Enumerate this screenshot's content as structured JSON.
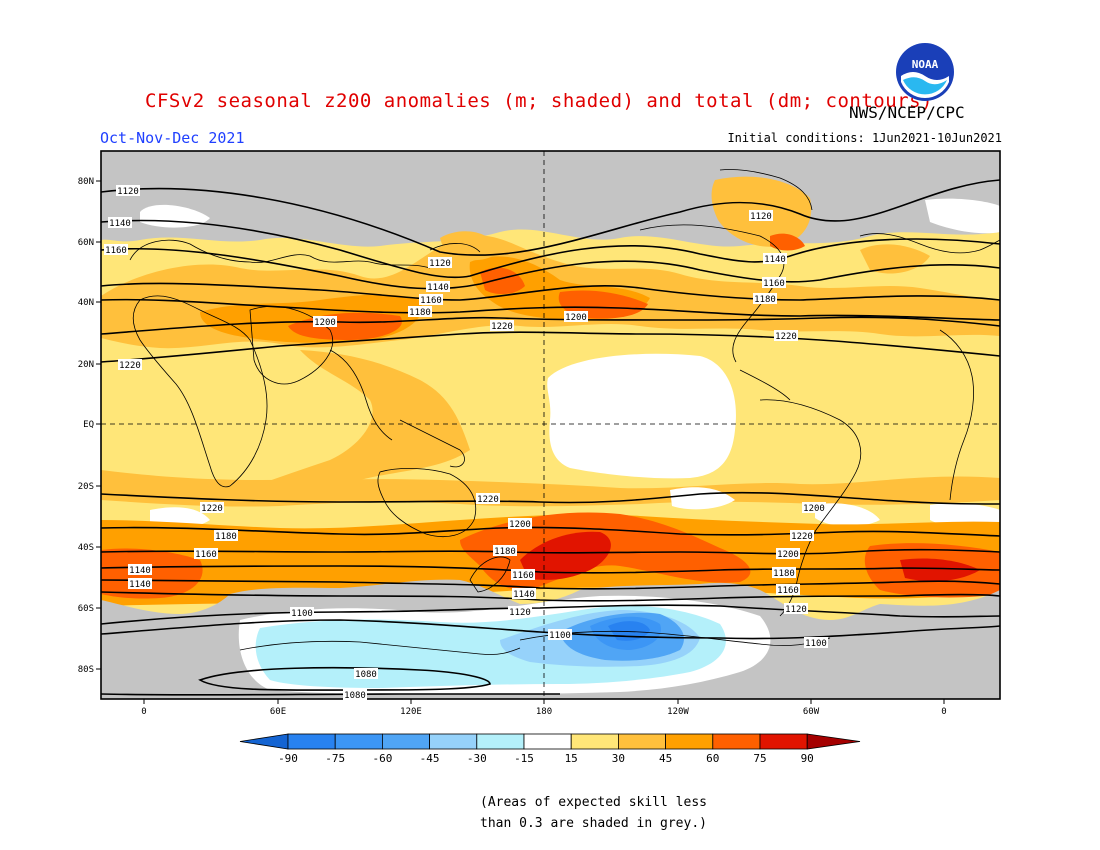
{
  "header": {
    "title": "CFSv2 seasonal z200 anomalies (m; shaded) and total (dm; contours)",
    "season": "Oct-Nov-Dec 2021",
    "initial_conditions": "Initial conditions: 1Jun2021-10Jun2021",
    "agency": "NWS/NCEP/CPC",
    "logo_text": "NOAA"
  },
  "map": {
    "lat_labels": [
      "80N",
      "60N",
      "40N",
      "20N",
      "EQ",
      "20S",
      "40S",
      "60S",
      "80S"
    ],
    "lon_labels": [
      "0",
      "60E",
      "120E",
      "180",
      "120W",
      "60W",
      "0"
    ],
    "contour_labels": [
      "1120",
      "1140",
      "1160",
      "1120",
      "1140",
      "1160",
      "1180",
      "1200",
      "1220",
      "1120",
      "1140",
      "1160",
      "1180",
      "1200",
      "1220",
      "1220",
      "1220",
      "1220",
      "1200",
      "1180",
      "1160",
      "1140",
      "1200",
      "1180",
      "1160",
      "1140",
      "1220",
      "1200",
      "1180",
      "1160",
      "1140",
      "1120",
      "1100",
      "1120",
      "1100",
      "1100",
      "1080",
      "1080"
    ]
  },
  "colorbar": {
    "ticks": [
      "-90",
      "-75",
      "-60",
      "-45",
      "-30",
      "-15",
      "15",
      "30",
      "45",
      "60",
      "75",
      "90"
    ],
    "colors": [
      "#1464d2",
      "#2882f0",
      "#3c96f5",
      "#50a5f5",
      "#96d2fa",
      "#b4f0fa",
      "#ffffff",
      "#ffe678",
      "#ffc03c",
      "#ffa000",
      "#ff6000",
      "#e11400",
      "#a50000"
    ]
  },
  "footnote": {
    "line1": "(Areas of expected skill less",
    "line2": "than 0.3 are shaded in grey.)"
  }
}
